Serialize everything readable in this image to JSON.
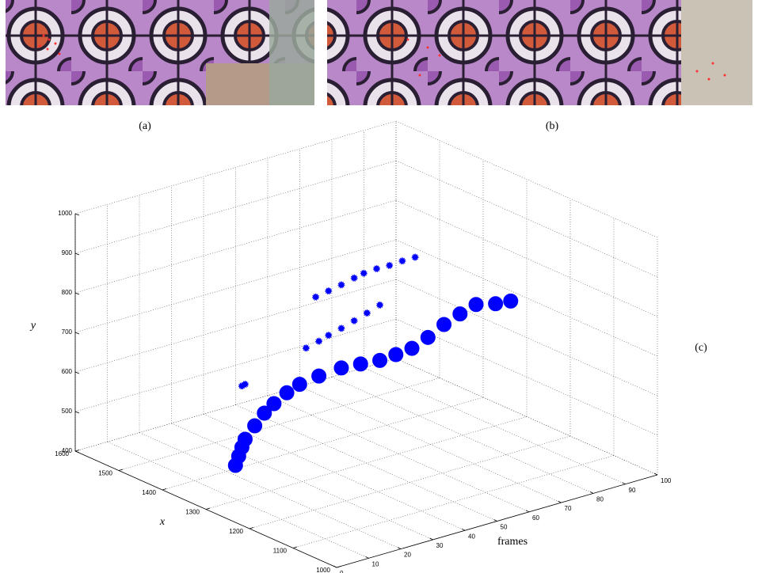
{
  "panels": {
    "a": "(a)",
    "b": "(b)",
    "c": "(c)"
  },
  "chart_data": {
    "type": "scatter3d",
    "xlabel": "x",
    "ylabel": "y",
    "zlabel": "frames",
    "xlim": [
      1000,
      1600
    ],
    "ylim": [
      400,
      1000
    ],
    "zlim": [
      0,
      100
    ],
    "xticks": [
      1000,
      1100,
      1200,
      1300,
      1400,
      1500,
      1600
    ],
    "yticks": [
      400,
      500,
      600,
      700,
      800,
      900,
      1000
    ],
    "zticks": [
      0,
      10,
      20,
      30,
      40,
      50,
      60,
      70,
      80,
      90,
      100
    ],
    "grid": true,
    "series": [
      {
        "color": "#0000ff",
        "frames": [
          16,
          17,
          18,
          19,
          22,
          25,
          28,
          32,
          36,
          42,
          49,
          55,
          61,
          66,
          71,
          76,
          81,
          86,
          91,
          93,
          95
        ],
        "x": [
          1350,
          1350,
          1350,
          1350,
          1350,
          1350,
          1350,
          1350,
          1350,
          1350,
          1350,
          1350,
          1350,
          1350,
          1350,
          1350,
          1350,
          1350,
          1350,
          1320,
          1300
        ],
        "y": [
          449,
          470,
          490,
          508,
          535,
          560,
          577,
          595,
          607,
          614,
          618,
          614,
          609,
          612,
          616,
          632,
          653,
          668,
          680,
          692,
          704
        ]
      },
      {
        "color": "#0000ff",
        "frames": [
          41,
          45,
          49,
          53,
          56,
          60,
          64,
          68,
          72
        ],
        "x": [
          1350,
          1350,
          1350,
          1350,
          1350,
          1350,
          1350,
          1350,
          1350
        ],
        "y": [
          816,
          822,
          828,
          836,
          841,
          843,
          842,
          844,
          844
        ]
      },
      {
        "color": "#0000ff",
        "frames": [
          38,
          42,
          45,
          49,
          53,
          57,
          61
        ],
        "x": [
          1350,
          1350,
          1350,
          1350,
          1350,
          1350,
          1350
        ],
        "y": [
          694,
          702,
          710,
          718,
          728,
          738,
          749
        ]
      },
      {
        "color": "#0000ff",
        "frames": [
          18,
          19
        ],
        "x": [
          1350,
          1350
        ],
        "y": [
          645,
          647
        ]
      }
    ]
  }
}
